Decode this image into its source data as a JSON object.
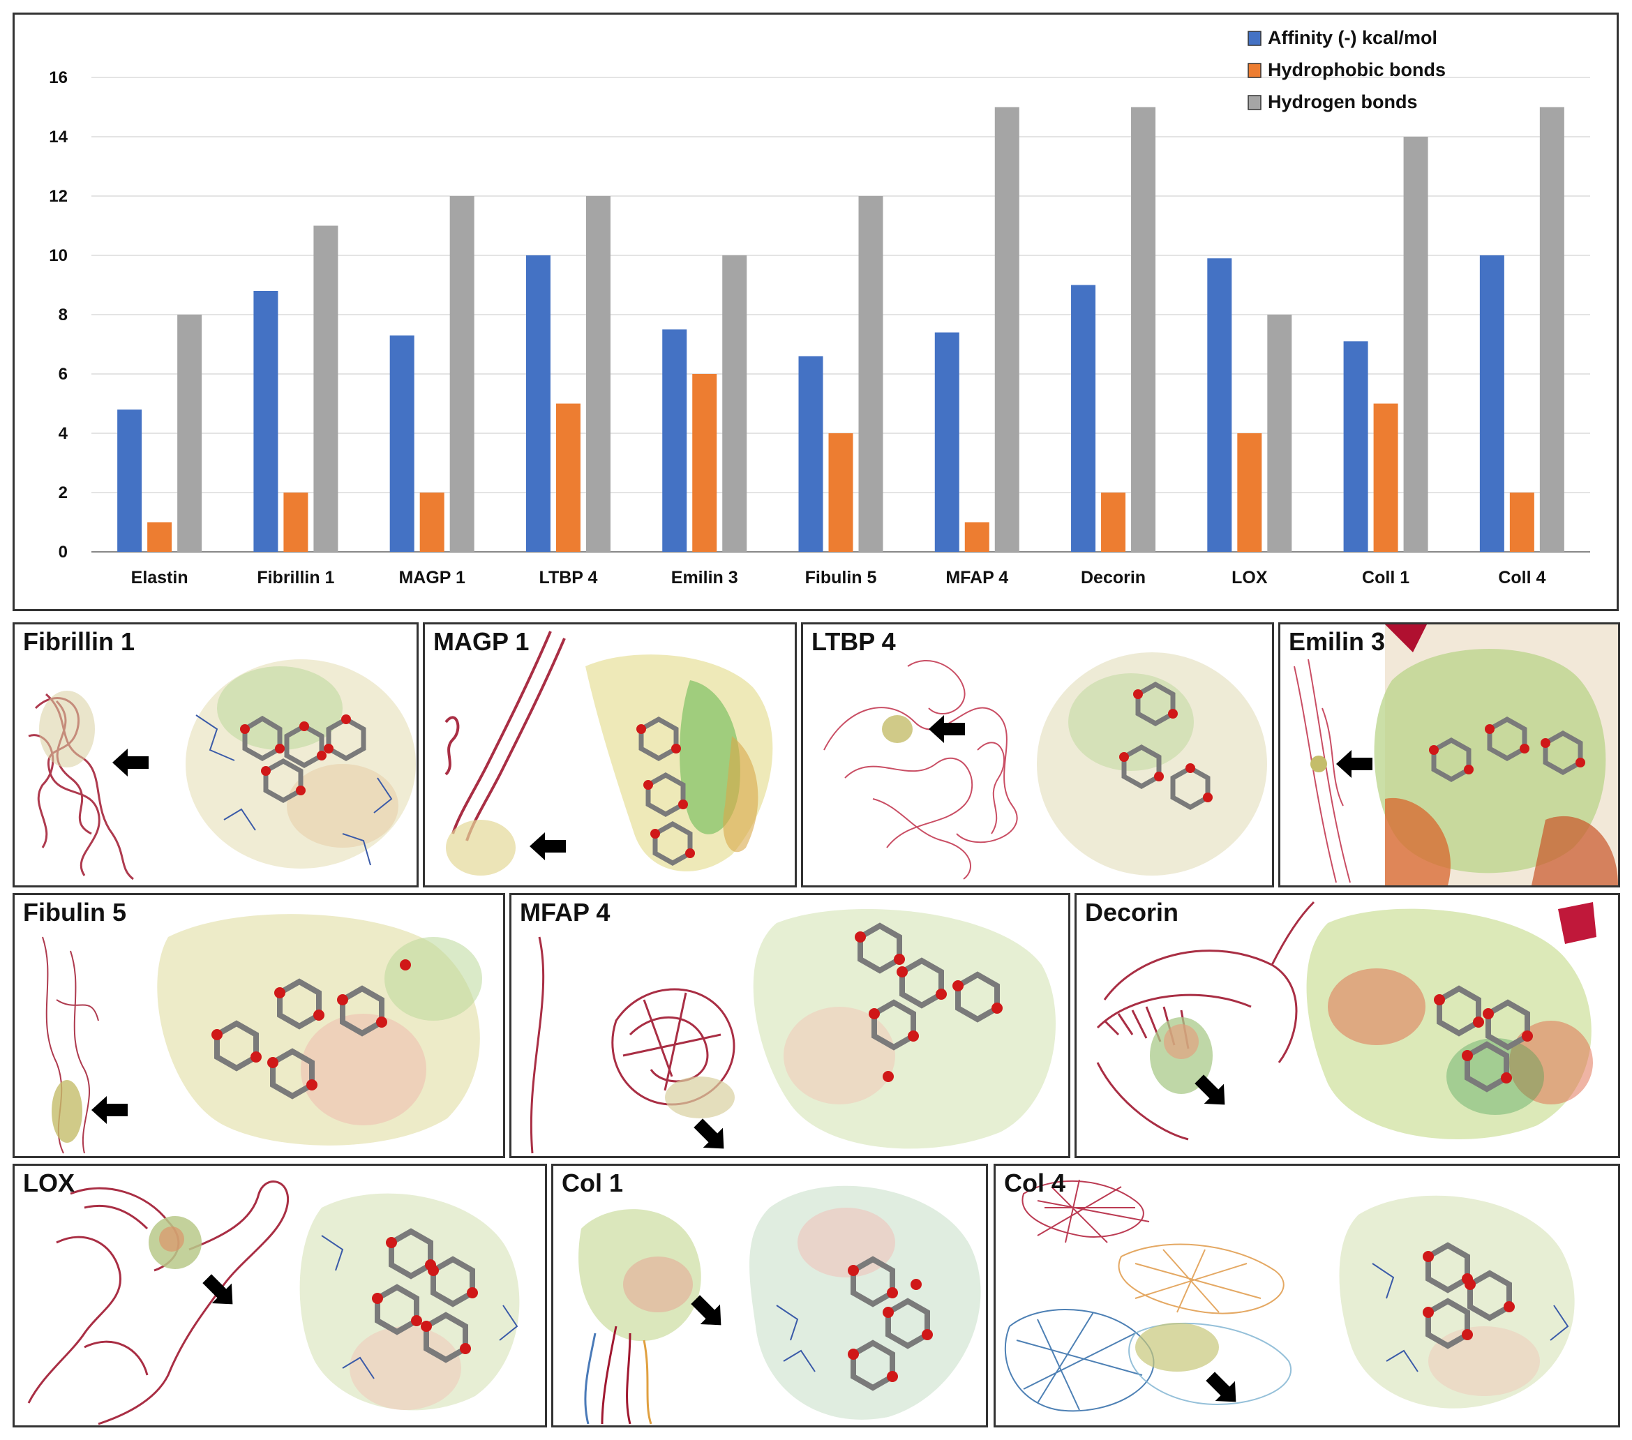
{
  "chart_data": {
    "type": "bar",
    "categories": [
      "Elastin",
      "Fibrillin 1",
      "MAGP 1",
      "LTBP 4",
      "Emilin 3",
      "Fibulin 5",
      "MFAP 4",
      "Decorin",
      "LOX",
      "Coll 1",
      "Coll 4"
    ],
    "series": [
      {
        "name": "Affinity (-) kcal/mol",
        "color": "#4472c4",
        "values": [
          4.8,
          8.8,
          7.3,
          10,
          7.5,
          6.6,
          7.4,
          9,
          9.9,
          7.1,
          10
        ]
      },
      {
        "name": "Hydrophobic bonds",
        "color": "#ed7d31",
        "values": [
          1,
          2,
          2,
          5,
          6,
          4,
          1,
          2,
          4,
          5,
          2
        ]
      },
      {
        "name": "Hydrogen bonds",
        "color": "#a5a5a5",
        "values": [
          8,
          11,
          12,
          12,
          10,
          12,
          15,
          15,
          8,
          14,
          15
        ]
      }
    ],
    "yticks": [
      "0",
      "2",
      "4",
      "6",
      "8",
      "10",
      "12",
      "14",
      "16"
    ],
    "ylim": [
      0,
      16
    ],
    "legend_position": "top-right"
  },
  "panels": [
    {
      "id": "fibrillin1",
      "label": "Fibrillin 1"
    },
    {
      "id": "magp1",
      "label": "MAGP 1"
    },
    {
      "id": "ltbp4",
      "label": "LTBP 4"
    },
    {
      "id": "emilin3",
      "label": "Emilin 3"
    },
    {
      "id": "fibulin5",
      "label": "Fibulin 5"
    },
    {
      "id": "mfap4",
      "label": "MFAP 4"
    },
    {
      "id": "decorin",
      "label": "Decorin"
    },
    {
      "id": "lox",
      "label": "LOX"
    },
    {
      "id": "col1",
      "label": "Col 1"
    },
    {
      "id": "col4",
      "label": "Col 4"
    }
  ]
}
